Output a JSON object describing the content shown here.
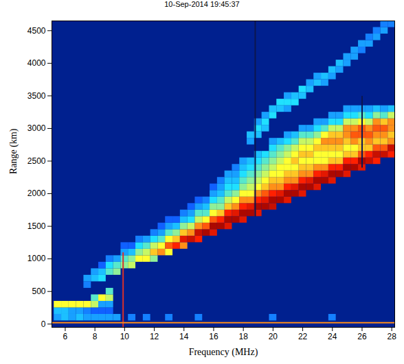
{
  "chart_data": {
    "type": "heatmap",
    "title": "10-Sep-2014 19:45:37",
    "x_label": "Frequency (MHz)",
    "y_label": "Range (km)",
    "xlim": [
      5.1,
      28.2
    ],
    "ylim": [
      -50,
      4650
    ],
    "xticks": [
      6,
      8,
      10,
      12,
      14,
      16,
      18,
      20,
      22,
      24,
      26,
      28
    ],
    "yticks": [
      0,
      500,
      1000,
      1500,
      2000,
      2500,
      3000,
      3500,
      4000,
      4500
    ],
    "value_range": [
      0,
      1
    ],
    "cell_width": 0.5,
    "cell_height": 100,
    "columns": [
      {
        "frequency": 7.5,
        "range_start": 600,
        "values": [
          0.25,
          0.3
        ]
      },
      {
        "frequency": 8.0,
        "range_start": 700,
        "values": [
          0.35,
          0.3
        ]
      },
      {
        "frequency": 8.5,
        "range_start": 700,
        "values": [
          0.4,
          0.35,
          0.2
        ]
      },
      {
        "frequency": 9.0,
        "range_start": 800,
        "values": [
          0.45,
          0.4,
          0.25
        ]
      },
      {
        "frequency": 9.5,
        "range_start": 800,
        "values": [
          0.5,
          0.45,
          0.3
        ]
      },
      {
        "frequency": 10.0,
        "range_start": 900,
        "values": [
          0.5,
          0.45,
          0.3,
          0.2
        ]
      },
      {
        "frequency": 10.5,
        "range_start": 900,
        "values": [
          0.55,
          0.5,
          0.35,
          0.2
        ]
      },
      {
        "frequency": 11.0,
        "range_start": 1000,
        "values": [
          0.6,
          0.5,
          0.4,
          0.25
        ]
      },
      {
        "frequency": 11.5,
        "range_start": 1000,
        "values": [
          0.6,
          0.55,
          0.45,
          0.3
        ]
      },
      {
        "frequency": 12.0,
        "range_start": 1000,
        "values": [
          0.5,
          0.65,
          0.55,
          0.4,
          0.25
        ]
      },
      {
        "frequency": 12.5,
        "range_start": 1100,
        "values": [
          0.7,
          0.6,
          0.45,
          0.3,
          0.2
        ]
      },
      {
        "frequency": 13.0,
        "range_start": 1100,
        "values": [
          0.6,
          0.75,
          0.6,
          0.45,
          0.3,
          0.2
        ]
      },
      {
        "frequency": 13.5,
        "range_start": 1200,
        "values": [
          0.8,
          0.65,
          0.5,
          0.35,
          0.2
        ]
      },
      {
        "frequency": 14.0,
        "range_start": 1200,
        "values": [
          0.7,
          0.85,
          0.65,
          0.5,
          0.35,
          0.25
        ]
      },
      {
        "frequency": 14.5,
        "range_start": 1300,
        "values": [
          0.9,
          0.7,
          0.55,
          0.4,
          0.3,
          0.2
        ]
      },
      {
        "frequency": 15.0,
        "range_start": 1300,
        "values": [
          0.8,
          0.9,
          0.7,
          0.55,
          0.45,
          0.3,
          0.2
        ]
      },
      {
        "frequency": 15.5,
        "range_start": 1400,
        "values": [
          0.95,
          0.75,
          0.6,
          0.45,
          0.35,
          0.25
        ]
      },
      {
        "frequency": 16.0,
        "range_start": 1400,
        "values": [
          0.85,
          0.95,
          0.75,
          0.6,
          0.5,
          0.4,
          0.3,
          0.2
        ]
      },
      {
        "frequency": 16.5,
        "range_start": 1500,
        "values": [
          0.95,
          0.8,
          0.65,
          0.5,
          0.45,
          0.35,
          0.3,
          0.25
        ]
      },
      {
        "frequency": 17.0,
        "range_start": 1500,
        "values": [
          0.85,
          0.95,
          0.8,
          0.65,
          0.55,
          0.45,
          0.4,
          0.35,
          0.3
        ]
      },
      {
        "frequency": 17.5,
        "range_start": 1600,
        "values": [
          0.95,
          0.85,
          0.7,
          0.6,
          0.5,
          0.4,
          0.35,
          0.3,
          0.25
        ]
      },
      {
        "frequency": 18.0,
        "range_start": 1600,
        "values": [
          0.85,
          0.95,
          0.8,
          0.7,
          0.6,
          0.5,
          0.45,
          0.4,
          0.35,
          0.3
        ]
      },
      {
        "frequency": 18.5,
        "range_start": 1700,
        "values": [
          0.95,
          0.85,
          0.7,
          0.6,
          0.55,
          0.5,
          0.45,
          0.4,
          0.35
        ]
      },
      {
        "frequency": 19.0,
        "range_start": 1700,
        "values": [
          0.85,
          0.95,
          0.8,
          0.7,
          0.6,
          0.55,
          0.5,
          0.45,
          0.4,
          0.35
        ]
      },
      {
        "frequency": 19.5,
        "range_start": 1800,
        "values": [
          0.95,
          0.85,
          0.75,
          0.65,
          0.6,
          0.55,
          0.5,
          0.45,
          0.4
        ]
      },
      {
        "frequency": 20.0,
        "range_start": 1800,
        "values": [
          0.9,
          0.95,
          0.8,
          0.7,
          0.65,
          0.6,
          0.55,
          0.5,
          0.45,
          0.4,
          0.3
        ]
      },
      {
        "frequency": 20.5,
        "range_start": 1900,
        "values": [
          0.95,
          0.85,
          0.7,
          0.65,
          0.6,
          0.6,
          0.55,
          0.5,
          0.45,
          0.35
        ]
      },
      {
        "frequency": 21.0,
        "range_start": 1900,
        "values": [
          0.85,
          0.95,
          0.8,
          0.7,
          0.65,
          0.6,
          0.6,
          0.55,
          0.5,
          0.4,
          0.3
        ]
      },
      {
        "frequency": 21.5,
        "range_start": 2000,
        "values": [
          0.95,
          0.85,
          0.7,
          0.65,
          0.6,
          0.65,
          0.6,
          0.55,
          0.45,
          0.35
        ]
      },
      {
        "frequency": 22.0,
        "range_start": 2000,
        "values": [
          0.85,
          0.95,
          0.8,
          0.7,
          0.65,
          0.6,
          0.65,
          0.6,
          0.55,
          0.45,
          0.3
        ]
      },
      {
        "frequency": 22.5,
        "range_start": 2100,
        "values": [
          0.95,
          0.85,
          0.7,
          0.65,
          0.6,
          0.65,
          0.6,
          0.55,
          0.45,
          0.3
        ]
      },
      {
        "frequency": 23.0,
        "range_start": 2100,
        "values": [
          0.85,
          0.95,
          0.8,
          0.7,
          0.6,
          0.6,
          0.65,
          0.6,
          0.5,
          0.4,
          0.3
        ]
      },
      {
        "frequency": 23.5,
        "range_start": 2200,
        "values": [
          0.95,
          0.85,
          0.7,
          0.6,
          0.6,
          0.65,
          0.7,
          0.6,
          0.45,
          0.3
        ]
      },
      {
        "frequency": 24.0,
        "range_start": 2200,
        "values": [
          0.85,
          0.95,
          0.8,
          0.65,
          0.6,
          0.65,
          0.7,
          0.65,
          0.55,
          0.4,
          0.3
        ]
      },
      {
        "frequency": 24.5,
        "range_start": 2300,
        "values": [
          0.95,
          0.8,
          0.65,
          0.6,
          0.65,
          0.7,
          0.65,
          0.55,
          0.4,
          0.3
        ]
      },
      {
        "frequency": 25.0,
        "range_start": 2300,
        "values": [
          0.85,
          0.95,
          0.8,
          0.65,
          0.6,
          0.65,
          0.7,
          0.7,
          0.55,
          0.4,
          0.3
        ]
      },
      {
        "frequency": 25.5,
        "range_start": 2400,
        "values": [
          0.95,
          0.8,
          0.65,
          0.6,
          0.7,
          0.75,
          0.7,
          0.55,
          0.4,
          0.3
        ]
      },
      {
        "frequency": 26.0,
        "range_start": 2400,
        "values": [
          0.85,
          0.95,
          0.75,
          0.65,
          0.65,
          0.75,
          0.75,
          0.6,
          0.45,
          0.3
        ]
      },
      {
        "frequency": 26.5,
        "range_start": 2500,
        "values": [
          0.9,
          0.8,
          0.65,
          0.7,
          0.75,
          0.7,
          0.55,
          0.4,
          0.3
        ]
      },
      {
        "frequency": 27.0,
        "range_start": 2500,
        "values": [
          0.8,
          0.9,
          0.75,
          0.65,
          0.7,
          0.75,
          0.7,
          0.5,
          0.35
        ]
      },
      {
        "frequency": 27.5,
        "range_start": 2600,
        "values": [
          0.9,
          0.75,
          0.65,
          0.7,
          0.75,
          0.65,
          0.45,
          0.3
        ]
      },
      {
        "frequency": 28.0,
        "range_start": 2600,
        "values": [
          0.8,
          0.9,
          0.7,
          0.65,
          0.7,
          0.7,
          0.55,
          0.35
        ]
      },
      {
        "frequency": 18.5,
        "range_start": 2800,
        "values": [
          0.3,
          0.35
        ]
      },
      {
        "frequency": 19.0,
        "range_start": 2900,
        "values": [
          0.35,
          0.4,
          0.3
        ]
      },
      {
        "frequency": 19.5,
        "range_start": 3000,
        "values": [
          0.35,
          0.4,
          0.3
        ]
      },
      {
        "frequency": 20.0,
        "range_start": 3200,
        "values": [
          0.4,
          0.35
        ]
      },
      {
        "frequency": 20.5,
        "range_start": 3300,
        "values": [
          0.35,
          0.4
        ]
      },
      {
        "frequency": 21.0,
        "range_start": 3300,
        "values": [
          0.3,
          0.4,
          0.3
        ]
      },
      {
        "frequency": 21.5,
        "range_start": 3400,
        "values": [
          0.4,
          0.35
        ]
      },
      {
        "frequency": 22.0,
        "range_start": 3500,
        "values": [
          0.35,
          0.4
        ]
      },
      {
        "frequency": 22.5,
        "range_start": 3600,
        "values": [
          0.35,
          0.3
        ]
      },
      {
        "frequency": 23.0,
        "range_start": 3700,
        "values": [
          0.35,
          0.3
        ]
      },
      {
        "frequency": 23.5,
        "range_start": 3700,
        "values": [
          0.3,
          0.35
        ]
      },
      {
        "frequency": 24.0,
        "range_start": 3800,
        "values": [
          0.3,
          0.35
        ]
      },
      {
        "frequency": 24.5,
        "range_start": 3900,
        "values": [
          0.3,
          0.35
        ]
      },
      {
        "frequency": 25.0,
        "range_start": 4000,
        "values": [
          0.3,
          0.3
        ]
      },
      {
        "frequency": 25.5,
        "range_start": 4100,
        "values": [
          0.3,
          0.3
        ]
      },
      {
        "frequency": 26.0,
        "range_start": 4200,
        "values": [
          0.25,
          0.3
        ]
      },
      {
        "frequency": 26.5,
        "range_start": 4300,
        "values": [
          0.3,
          0.25
        ]
      },
      {
        "frequency": 27.0,
        "range_start": 4400,
        "values": [
          0.3,
          0.25
        ]
      },
      {
        "frequency": 27.5,
        "range_start": 4500,
        "values": [
          0.3,
          0.25
        ]
      },
      {
        "frequency": 28.0,
        "range_start": 4600,
        "values": [
          0.25
        ]
      },
      {
        "frequency": 5.5,
        "range_start": 100,
        "values": [
          0.3,
          0.35,
          0.6
        ]
      },
      {
        "frequency": 6.0,
        "range_start": 100,
        "values": [
          0.35,
          0.35,
          0.6
        ]
      },
      {
        "frequency": 6.5,
        "range_start": 100,
        "values": [
          0.3,
          0.3,
          0.6
        ]
      },
      {
        "frequency": 7.0,
        "range_start": 100,
        "values": [
          0.35,
          0.3,
          0.6
        ]
      },
      {
        "frequency": 7.5,
        "range_start": 100,
        "values": [
          0.3,
          0.25,
          0.6
        ]
      },
      {
        "frequency": 8.0,
        "range_start": 100,
        "values": [
          0.3,
          0.2,
          0.55,
          0.45
        ]
      },
      {
        "frequency": 8.5,
        "range_start": 100,
        "values": [
          0.3,
          0.2,
          0.3,
          0.6
        ]
      },
      {
        "frequency": 9.0,
        "range_start": 100,
        "values": [
          0.3,
          0.2,
          0.3,
          0.55,
          0.45
        ]
      },
      {
        "frequency": 9.5,
        "range_start": 100,
        "values": [
          0.3
        ]
      },
      {
        "frequency": 10.5,
        "range_start": 100,
        "values": [
          0.25
        ]
      },
      {
        "frequency": 11.5,
        "range_start": 100,
        "values": [
          0.25
        ]
      },
      {
        "frequency": 13.0,
        "range_start": 100,
        "values": [
          0.25
        ]
      },
      {
        "frequency": 15.0,
        "range_start": 100,
        "values": [
          0.25
        ]
      },
      {
        "frequency": 20.0,
        "range_start": 100,
        "values": [
          0.25
        ]
      },
      {
        "frequency": 24.0,
        "range_start": 100,
        "values": [
          0.25
        ]
      }
    ],
    "interference_lines": [
      {
        "x1": 9.9,
        "y1": -50,
        "x2": 9.9,
        "y2": 1100,
        "color": "#d8302a"
      },
      {
        "x1": 18.8,
        "y1": 1650,
        "x2": 18.8,
        "y2": 4650,
        "color": "#0b1650"
      },
      {
        "x1": 26.0,
        "y1": 2400,
        "x2": 26.0,
        "y2": 3500,
        "color": "#0b1650"
      },
      {
        "x1": 5.1,
        "y1": 20,
        "x2": 28.2,
        "y2": 20,
        "color": "#ff8c1a"
      }
    ]
  }
}
